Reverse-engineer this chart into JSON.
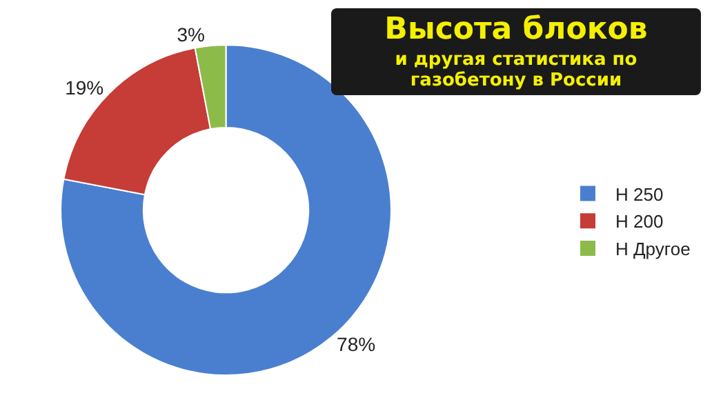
{
  "chart_data": {
    "type": "donut",
    "title": "Высота блоков",
    "subtitle": "и другая статистика по газобетону в России",
    "categories": [
      "Н 250",
      "Н 200",
      "Н Другое"
    ],
    "values": [
      78,
      19,
      3
    ],
    "colors": [
      "#4a7fd0",
      "#c63c36",
      "#8dbb4a"
    ],
    "value_labels": [
      "78%",
      "19%",
      "3%"
    ],
    "legend": "right"
  }
}
